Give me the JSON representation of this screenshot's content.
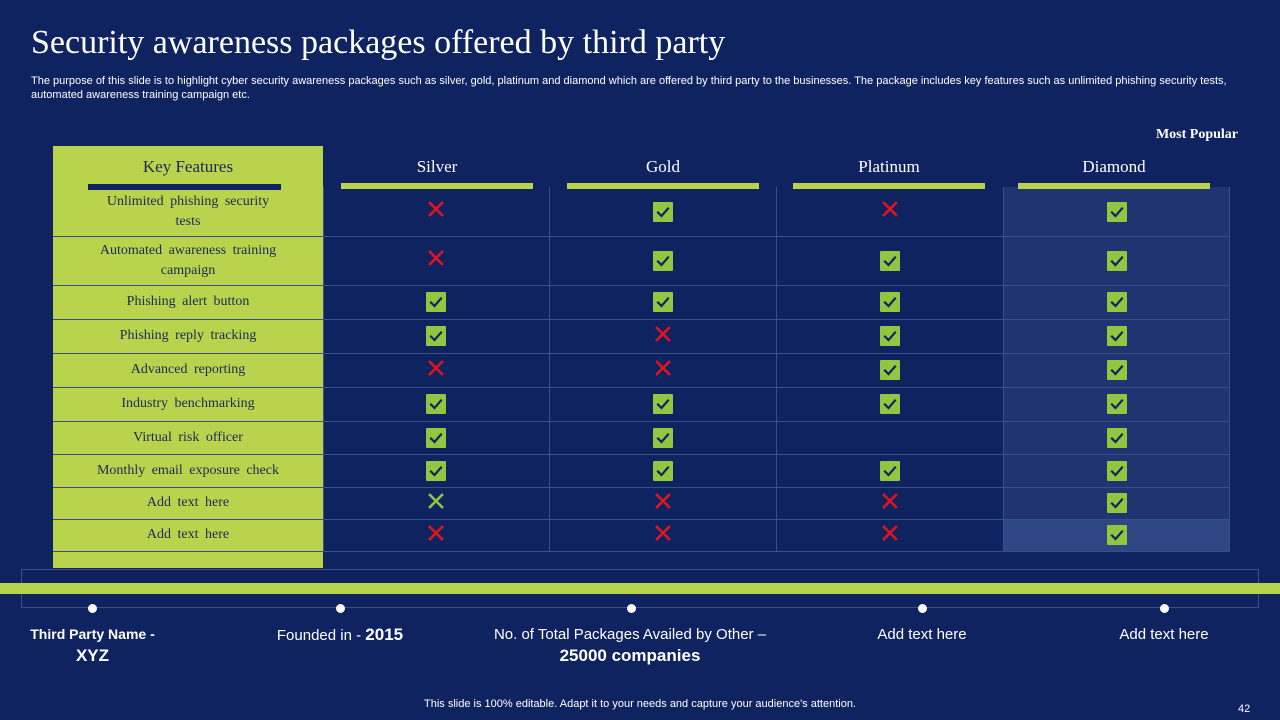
{
  "slide": {
    "title": "Security awareness packages offered by third party",
    "subtitle": "The purpose of this slide is to highlight cyber security awareness packages such as silver, gold, platinum and diamond which are offered by third party to the businesses. The package includes key features such as unlimited phishing security tests, automated awareness training campaign etc.",
    "most_popular": "Most Popular",
    "footer": "This slide is 100% editable. Adapt it to your needs and capture your audience's attention.",
    "page_number": "42"
  },
  "table": {
    "key_features_header": "Key Features",
    "plans": [
      "Silver",
      "Gold",
      "Platinum",
      "Diamond"
    ],
    "rows": [
      {
        "feature": "Unlimited phishing security tests",
        "values": [
          "cross",
          "check",
          "cross",
          "check"
        ]
      },
      {
        "feature": "Automated awareness training campaign",
        "values": [
          "cross",
          "check",
          "check",
          "check"
        ]
      },
      {
        "feature": "Phishing alert button",
        "values": [
          "check",
          "check",
          "check",
          "check"
        ]
      },
      {
        "feature": "Phishing reply tracking",
        "values": [
          "check",
          "cross",
          "check",
          "check"
        ]
      },
      {
        "feature": "Advanced reporting",
        "values": [
          "cross",
          "cross",
          "check",
          "check"
        ]
      },
      {
        "feature": "Industry benchmarking",
        "values": [
          "check",
          "check",
          "check",
          "check"
        ]
      },
      {
        "feature": "Virtual risk officer",
        "values": [
          "check",
          "check",
          "none",
          "check"
        ]
      },
      {
        "feature": "Monthly email exposure check",
        "values": [
          "check",
          "check",
          "check",
          "check"
        ]
      },
      {
        "feature": "Add text here",
        "values": [
          "cross-green",
          "cross",
          "cross",
          "check"
        ]
      },
      {
        "feature": "Add text here",
        "values": [
          "cross",
          "cross",
          "cross",
          "check"
        ]
      }
    ]
  },
  "timeline": {
    "items": [
      {
        "label": "Third Party Name - ",
        "value": "XYZ"
      },
      {
        "label": "Founded in - ",
        "value": "2015"
      },
      {
        "label": "No. of Total Packages Availed by Other – ",
        "value": "25000 companies"
      },
      {
        "label": "Add text here",
        "value": ""
      },
      {
        "label": "Add text here",
        "value": ""
      }
    ]
  },
  "colors": {
    "background": "#0f2360",
    "accent": "#b9d34d",
    "check": "#92c540",
    "cross": "#e0141e"
  },
  "icons": {
    "check": "check-icon",
    "cross": "cross-icon"
  }
}
